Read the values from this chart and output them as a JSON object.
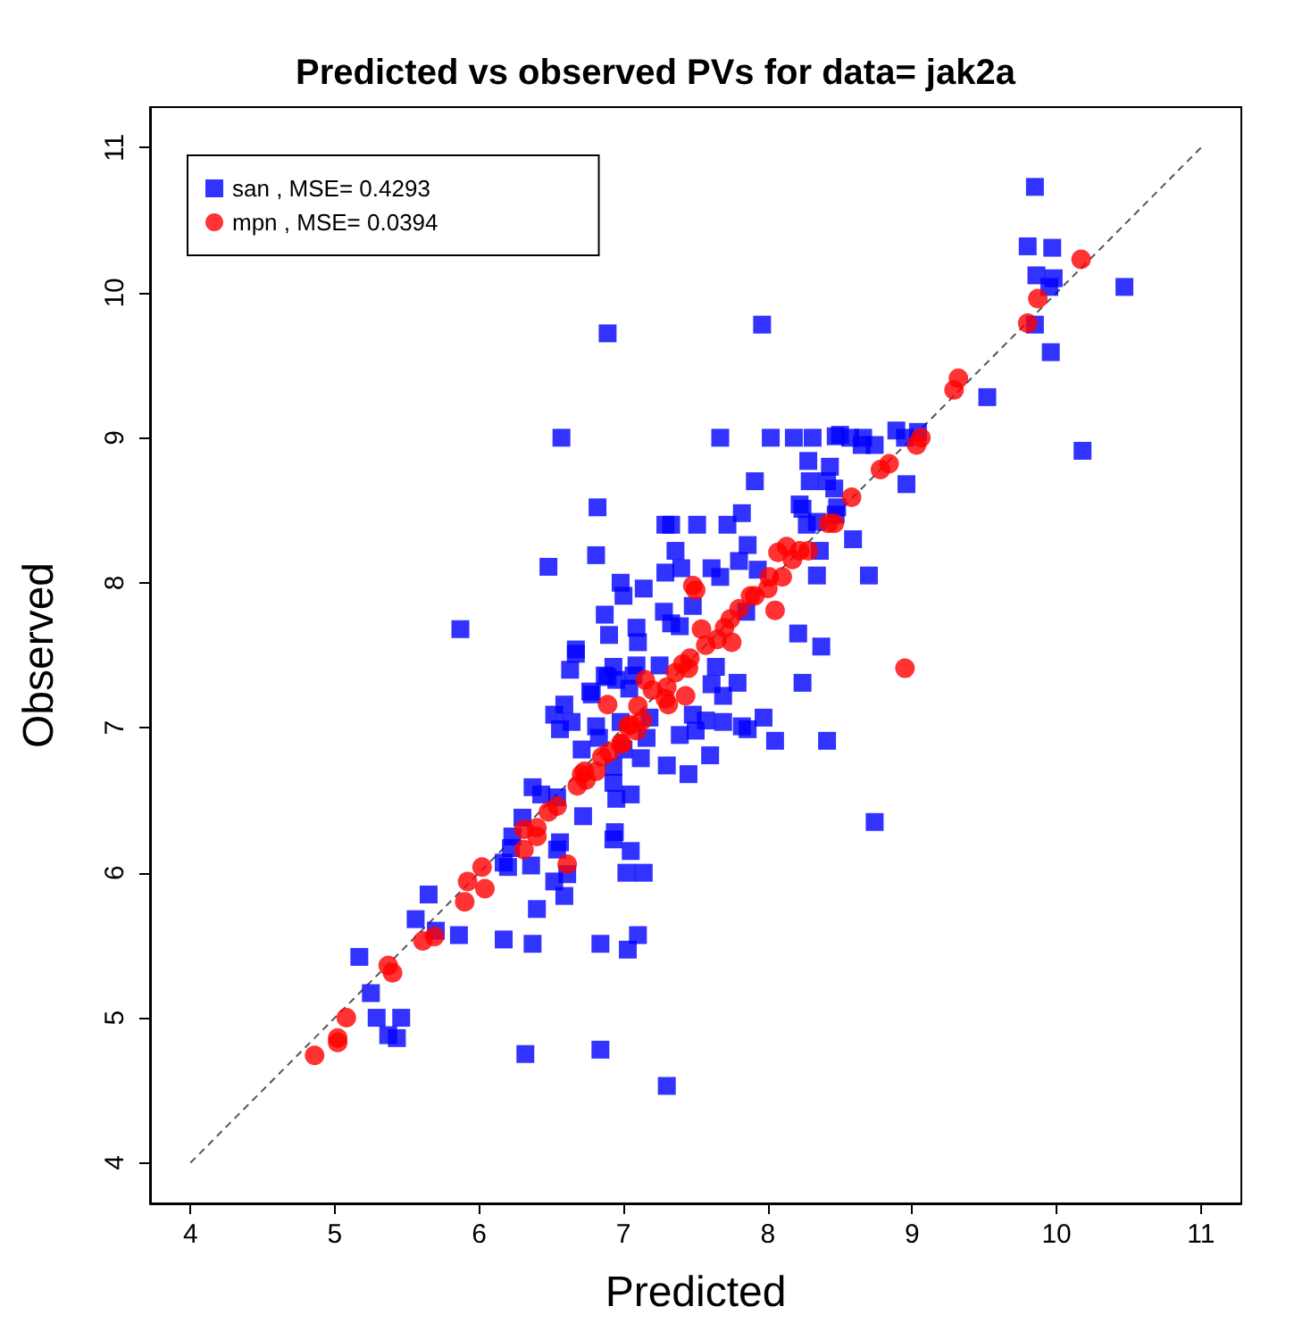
{
  "chart_data": {
    "type": "scatter",
    "title": "Predicted vs observed PVs for data= jak2a",
    "xlabel": "Predicted",
    "ylabel": "Observed",
    "xlim": [
      3.72,
      11.28
    ],
    "ylim": [
      3.72,
      11.28
    ],
    "xticks": [
      4,
      5,
      6,
      7,
      8,
      9,
      10,
      11
    ],
    "yticks": [
      4,
      5,
      6,
      7,
      8,
      9,
      10,
      11
    ],
    "grid": false,
    "legend": "top left",
    "series": [
      {
        "name": "san , MSE= 0.4293",
        "color": "#0000ff",
        "marker": "square",
        "x": [
          9.85,
          9.8,
          9.97,
          9.86,
          9.98,
          9.95,
          10.47,
          9.85,
          9.96,
          10.18,
          7.96,
          6.89,
          9.52,
          6.57,
          7.67,
          8.02,
          8.18,
          8.31,
          8.47,
          8.5,
          8.57,
          8.66,
          8.65,
          8.74,
          8.89,
          8.95,
          9.04,
          8.28,
          8.43,
          7.91,
          8.29,
          8.41,
          8.46,
          8.96,
          8.22,
          8.24,
          8.48,
          8.47,
          6.82,
          7.82,
          8.27,
          8.34,
          7.29,
          7.33,
          7.51,
          7.72,
          8.59,
          7.36,
          6.81,
          6.48,
          7.86,
          8.36,
          8.34,
          8.7,
          7.29,
          7.4,
          7.61,
          7.8,
          7.93,
          6.98,
          7.14,
          7.67,
          7.0,
          6.87,
          7.28,
          7.48,
          7.85,
          8.21,
          8.37,
          6.9,
          7.09,
          7.1,
          7.33,
          7.39,
          6.67,
          6.67,
          6.63,
          6.93,
          7.09,
          7.25,
          7.64,
          6.77,
          6.87,
          7.07,
          7.04,
          7.79,
          7.61,
          7.69,
          8.24,
          6.52,
          6.56,
          6.64,
          6.59,
          6.81,
          6.98,
          7.18,
          7.48,
          7.57,
          7.69,
          7.86,
          7.97,
          7.39,
          7.5,
          8.05,
          8.41,
          6.71,
          7.16,
          6.83,
          7.0,
          7.6,
          7.3,
          6.93,
          7.12,
          7.45,
          5.87,
          6.89,
          6.95,
          6.78,
          6.93,
          6.37,
          6.43,
          6.54,
          6.72,
          6.95,
          7.05,
          6.3,
          6.23,
          6.22,
          6.56,
          6.54,
          6.94,
          6.93,
          7.05,
          7.02,
          7.14,
          6.17,
          6.2,
          6.36,
          6.52,
          6.61,
          6.59,
          5.65,
          5.56,
          5.7,
          5.86,
          6.17,
          6.37,
          6.4,
          6.84,
          7.03,
          7.1,
          5.17,
          5.25,
          5.29,
          5.46,
          5.37,
          5.43,
          6.32,
          6.84,
          7.3,
          8.74,
          7.82
        ],
        "values": [
          10.73,
          10.32,
          10.31,
          10.12,
          10.1,
          10.04,
          10.04,
          9.78,
          9.59,
          8.91,
          9.78,
          9.72,
          9.28,
          9.0,
          9.0,
          9.0,
          9.0,
          9.0,
          9.01,
          9.02,
          9.0,
          9.0,
          8.95,
          8.95,
          9.05,
          9.0,
          9.04,
          8.84,
          8.8,
          8.7,
          8.7,
          8.7,
          8.65,
          8.68,
          8.54,
          8.51,
          8.52,
          8.47,
          8.52,
          8.48,
          8.4,
          8.42,
          8.4,
          8.4,
          8.4,
          8.4,
          8.3,
          8.22,
          8.19,
          8.11,
          8.26,
          8.22,
          8.05,
          8.05,
          8.07,
          8.1,
          8.1,
          8.15,
          8.09,
          8.0,
          7.96,
          8.04,
          7.91,
          7.78,
          7.8,
          7.84,
          7.8,
          7.65,
          7.56,
          7.64,
          7.69,
          7.59,
          7.72,
          7.7,
          7.54,
          7.51,
          7.4,
          7.42,
          7.43,
          7.43,
          7.42,
          7.25,
          7.36,
          7.36,
          7.27,
          7.31,
          7.3,
          7.22,
          7.31,
          7.09,
          6.99,
          7.04,
          7.16,
          7.01,
          7.04,
          7.07,
          7.09,
          7.05,
          7.04,
          6.99,
          7.07,
          6.95,
          6.98,
          6.91,
          6.91,
          6.85,
          6.93,
          6.93,
          6.85,
          6.81,
          6.74,
          6.73,
          6.79,
          6.68,
          7.68,
          7.35,
          7.33,
          7.23,
          6.62,
          6.59,
          6.54,
          6.52,
          6.39,
          6.51,
          6.54,
          6.38,
          6.25,
          6.17,
          6.21,
          6.16,
          6.28,
          6.23,
          6.15,
          6.0,
          6.0,
          6.07,
          6.04,
          6.05,
          5.94,
          5.99,
          5.84,
          5.85,
          5.68,
          5.6,
          5.57,
          5.54,
          5.51,
          5.75,
          5.51,
          5.47,
          5.57,
          5.42,
          5.17,
          5.0,
          5.0,
          4.88,
          4.86,
          4.75,
          4.78,
          4.53,
          6.35,
          7.01
        ]
      },
      {
        "name": "mpn , MSE= 0.0394",
        "color": "#ff0000",
        "marker": "circle",
        "x": [
          10.17,
          9.87,
          9.8,
          9.32,
          9.29,
          9.06,
          9.03,
          8.84,
          8.78,
          8.58,
          8.46,
          8.42,
          8.28,
          8.13,
          8.07,
          8.17,
          8.01,
          8.1,
          8.0,
          7.91,
          8.05,
          8.95,
          8.22,
          7.88,
          7.8,
          7.74,
          7.7,
          7.48,
          7.5,
          7.54,
          7.65,
          7.75,
          7.57,
          7.46,
          7.41,
          7.36,
          7.45,
          7.15,
          7.2,
          7.3,
          7.29,
          7.43,
          7.31,
          7.1,
          7.13,
          7.03,
          7.09,
          6.89,
          6.9,
          6.98,
          6.85,
          6.73,
          6.81,
          7.05,
          6.99,
          6.71,
          6.74,
          6.68,
          6.54,
          6.48,
          6.4,
          6.31,
          6.4,
          6.31,
          6.61,
          6.02,
          5.92,
          6.04,
          5.9,
          5.61,
          5.69,
          5.37,
          5.4,
          5.08,
          5.02,
          5.02,
          4.86
        ],
        "values": [
          10.23,
          9.96,
          9.79,
          9.41,
          9.33,
          9.0,
          8.95,
          8.82,
          8.78,
          8.59,
          8.41,
          8.41,
          8.22,
          8.25,
          8.21,
          8.16,
          8.04,
          8.04,
          7.96,
          7.91,
          7.81,
          7.41,
          8.22,
          7.91,
          7.82,
          7.75,
          7.69,
          7.98,
          7.95,
          7.68,
          7.61,
          7.59,
          7.57,
          7.48,
          7.44,
          7.38,
          7.41,
          7.33,
          7.26,
          7.28,
          7.2,
          7.22,
          7.16,
          7.15,
          7.05,
          7.01,
          6.98,
          7.16,
          6.83,
          6.89,
          6.8,
          6.7,
          6.7,
          7.02,
          6.89,
          6.68,
          6.64,
          6.6,
          6.46,
          6.42,
          6.31,
          6.3,
          6.25,
          6.16,
          6.06,
          6.04,
          5.94,
          5.89,
          5.8,
          5.53,
          5.56,
          5.36,
          5.31,
          5.0,
          4.86,
          4.83,
          4.74
        ]
      },
      {
        "type": "line",
        "color": "#555555",
        "line_style": "dashed",
        "marker": "none",
        "x": [
          4,
          11
        ],
        "values": [
          4,
          11
        ]
      }
    ]
  }
}
